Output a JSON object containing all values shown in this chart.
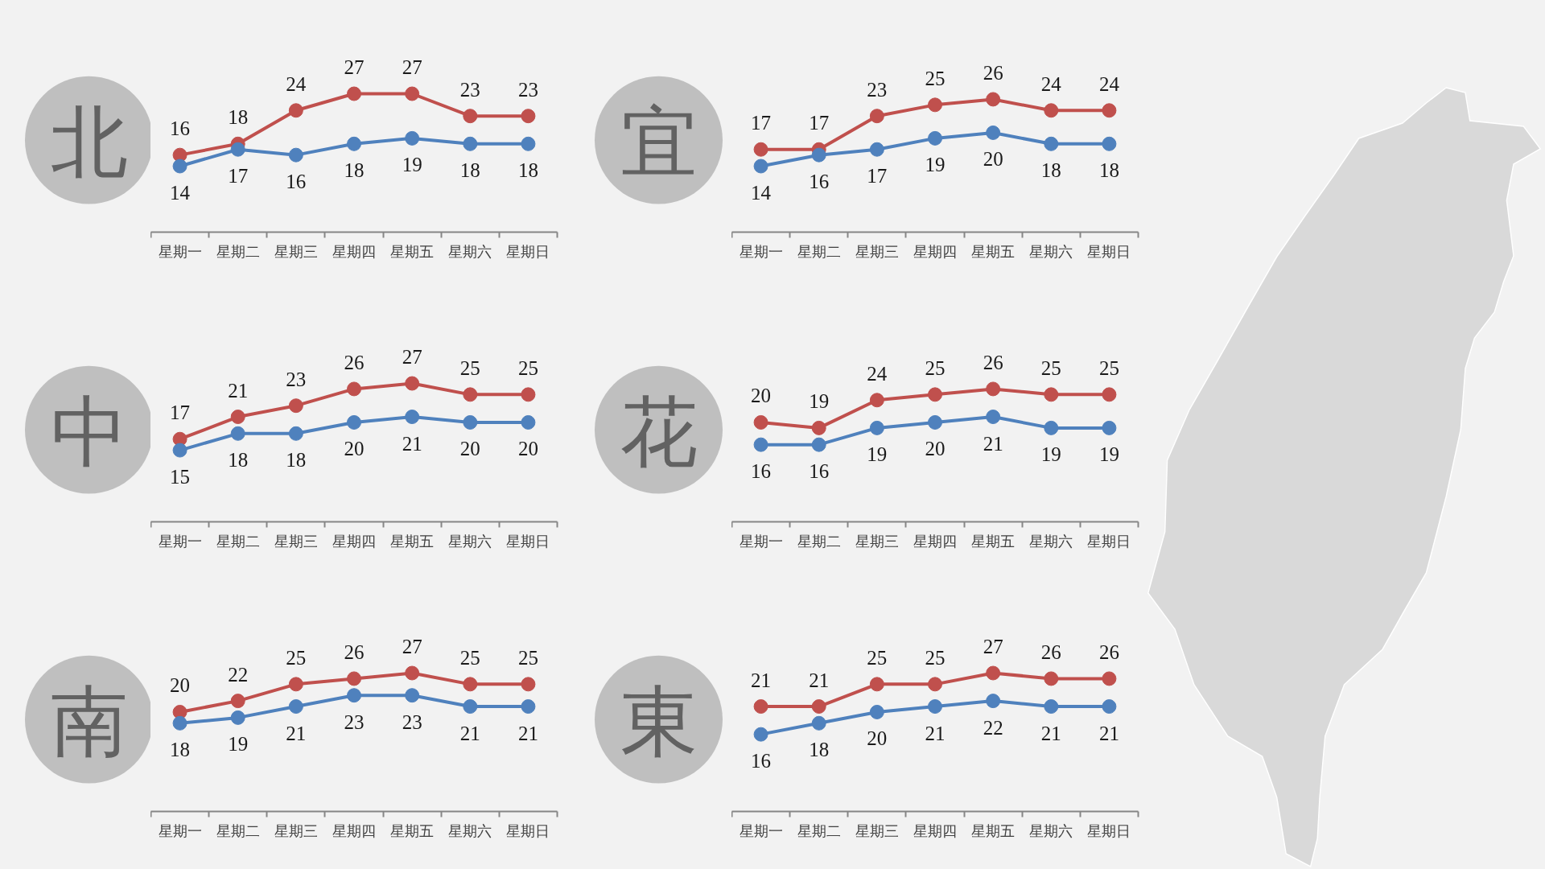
{
  "chart_data": [
    {
      "type": "line",
      "title": "北",
      "categories": [
        "星期一",
        "星期二",
        "星期三",
        "星期四",
        "星期五",
        "星期六",
        "星期日"
      ],
      "series": [
        {
          "color": "#c0504d",
          "values": [
            16,
            18,
            24,
            27,
            27,
            23,
            23
          ]
        },
        {
          "color": "#4f81bd",
          "values": [
            14,
            17,
            16,
            18,
            19,
            18,
            18
          ]
        }
      ],
      "marker": "circle",
      "line_style": "solid",
      "data_labels": true,
      "tick_labels": "x"
    },
    {
      "type": "line",
      "title": "宜",
      "categories": [
        "星期一",
        "星期二",
        "星期三",
        "星期四",
        "星期五",
        "星期六",
        "星期日"
      ],
      "series": [
        {
          "color": "#c0504d",
          "values": [
            17,
            17,
            23,
            25,
            26,
            24,
            24
          ]
        },
        {
          "color": "#4f81bd",
          "values": [
            14,
            16,
            17,
            19,
            20,
            18,
            18
          ]
        }
      ],
      "marker": "circle",
      "line_style": "solid",
      "data_labels": true,
      "tick_labels": "x"
    },
    {
      "type": "line",
      "title": "中",
      "categories": [
        "星期一",
        "星期二",
        "星期三",
        "星期四",
        "星期五",
        "星期六",
        "星期日"
      ],
      "series": [
        {
          "color": "#c0504d",
          "values": [
            17,
            21,
            23,
            26,
            27,
            25,
            25
          ]
        },
        {
          "color": "#4f81bd",
          "values": [
            15,
            18,
            18,
            20,
            21,
            20,
            20
          ]
        }
      ],
      "marker": "circle",
      "line_style": "solid",
      "data_labels": true,
      "tick_labels": "x"
    },
    {
      "type": "line",
      "title": "花",
      "categories": [
        "星期一",
        "星期二",
        "星期三",
        "星期四",
        "星期五",
        "星期六",
        "星期日"
      ],
      "series": [
        {
          "color": "#c0504d",
          "values": [
            20,
            19,
            24,
            25,
            26,
            25,
            25
          ]
        },
        {
          "color": "#4f81bd",
          "values": [
            16,
            16,
            19,
            20,
            21,
            19,
            19
          ]
        }
      ],
      "marker": "circle",
      "line_style": "solid",
      "data_labels": true,
      "tick_labels": "x"
    },
    {
      "type": "line",
      "title": "南",
      "categories": [
        "星期一",
        "星期二",
        "星期三",
        "星期四",
        "星期五",
        "星期六",
        "星期日"
      ],
      "series": [
        {
          "color": "#c0504d",
          "values": [
            20,
            22,
            25,
            26,
            27,
            25,
            25
          ]
        },
        {
          "color": "#4f81bd",
          "values": [
            18,
            19,
            21,
            23,
            23,
            21,
            21
          ]
        }
      ],
      "marker": "circle",
      "line_style": "solid",
      "data_labels": true,
      "tick_labels": "x"
    },
    {
      "type": "line",
      "title": "東",
      "categories": [
        "星期一",
        "星期二",
        "星期三",
        "星期四",
        "星期五",
        "星期六",
        "星期日"
      ],
      "series": [
        {
          "color": "#c0504d",
          "values": [
            21,
            21,
            25,
            25,
            27,
            26,
            26
          ]
        },
        {
          "color": "#4f81bd",
          "values": [
            16,
            18,
            20,
            21,
            22,
            21,
            21
          ]
        }
      ],
      "marker": "circle",
      "line_style": "solid",
      "data_labels": true,
      "tick_labels": "x"
    }
  ]
}
